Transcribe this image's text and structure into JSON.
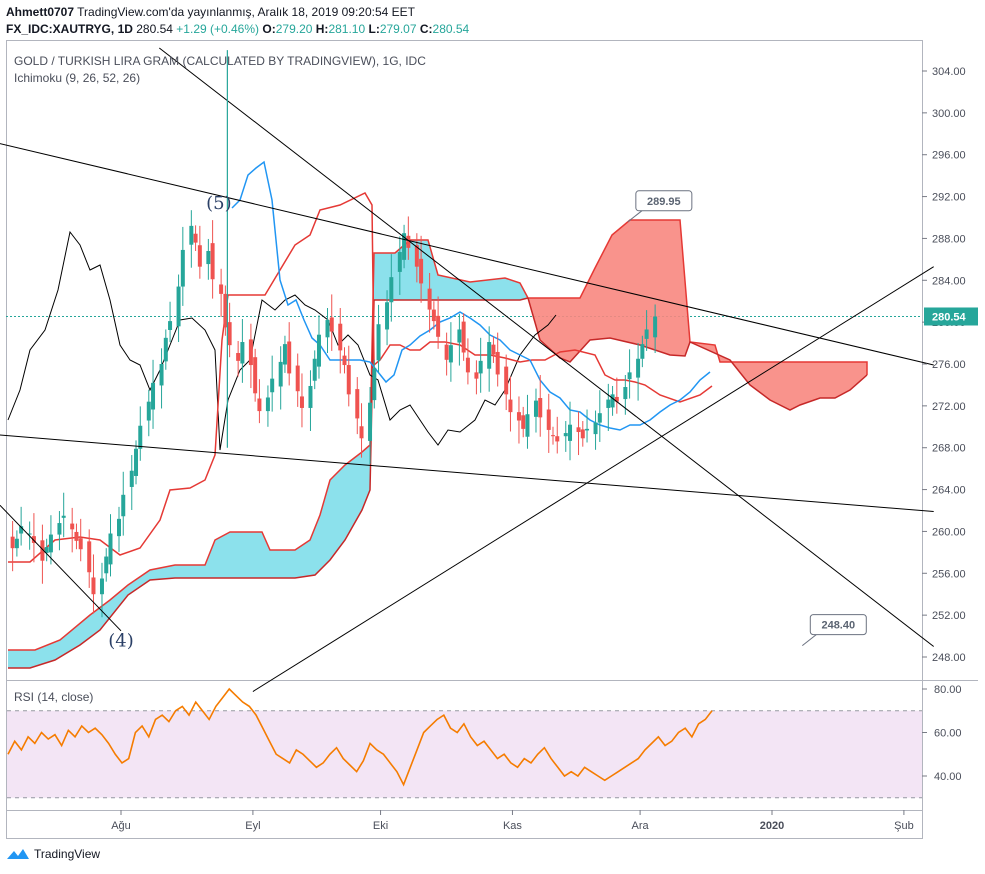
{
  "header": {
    "author": "Ahmett0707",
    "published": "TradingView.com'da yayınlanmış, Aralık 18, 2019 09:20:54 EET",
    "symbol": "FX_IDC:XAUTRYG, 1D",
    "last": "280.54",
    "change": "+1.29 (+0.46%)",
    "o_label": "O:",
    "o": "279.20",
    "h_label": "H:",
    "h": "281.10",
    "l_label": "L:",
    "l": "279.07",
    "c_label": "C:",
    "c": "280.54"
  },
  "chart_title": "GOLD / TURKISH LIRA GRAM (CALCULATED BY TRADINGVIEW), 1G, IDC",
  "indicator_label": "Ichimoku (9, 26, 52, 26)",
  "rsi_label": "RSI (14, close)",
  "footer": {
    "brand": "TradingView"
  },
  "colors": {
    "up": "#26a69a",
    "down": "#ef5350",
    "tenkan": "#2196f3",
    "kijun": "#e53935",
    "chikou": "#000000",
    "kumo_bull": "#80deea",
    "kumo_bear": "#f8877f",
    "rsi": "#f57c00",
    "rsi_band": "#f3e5f5"
  },
  "chart_data": [
    {
      "type": "candlestick",
      "title": "GOLD / TURKISH LIRA GRAM (CALCULATED BY TRADINGVIEW), 1G, IDC",
      "ylim": [
        245,
        306
      ],
      "y_ticks": [
        "304.00",
        "300.00",
        "296.00",
        "292.00",
        "288.00",
        "284.00",
        "280.00",
        "276.00",
        "272.00",
        "268.00",
        "264.00",
        "260.00",
        "256.00",
        "252.00",
        "248.00"
      ],
      "x_ticks": [
        "Ağu",
        "Eyl",
        "Eki",
        "Kas",
        "Ara",
        "2020",
        "Şub"
      ],
      "last_price": 280.54,
      "annotations": [
        {
          "text": "(5)",
          "date": "2019-08-24",
          "price": 290.8
        },
        {
          "text": "(4)",
          "date": "2019-08-01",
          "price": 249.0
        },
        {
          "text": "289.95",
          "date": "2019-11-30",
          "price": 291.5
        },
        {
          "text": "248.40",
          "date": "2020-01-10",
          "price": 251.0
        }
      ],
      "ohlc_start": "2019-07-01",
      "ohlc_close": [
        257.5,
        258.2,
        259.1,
        260.0,
        258.4,
        259.3,
        260.5,
        259.8,
        258.9,
        257.2,
        258.5,
        259.7,
        260.8,
        261.5,
        260.2,
        259.1,
        258.3,
        256.1,
        254.0,
        255.5,
        257.6,
        259.8,
        261.2,
        263.5,
        265.8,
        267.9,
        270.1,
        272.4,
        274.2,
        276.0,
        278.5,
        280.1,
        283.4,
        286.9,
        289.2,
        287.6,
        285.3,
        286.8,
        284.1,
        282.7,
        279.5,
        277.8,
        276.3,
        278.1,
        275.9,
        273.2,
        271.5,
        272.8,
        274.6,
        276.2,
        277.9,
        275.1,
        273.4,
        271.8,
        273.9,
        276.5,
        278.8,
        280.2,
        279.1,
        277.3,
        275.9,
        273.1,
        270.8,
        268.9,
        272.3,
        275.6,
        279.8,
        281.9,
        284.3,
        286.7,
        288.5,
        287.1,
        285.3,
        283.7,
        281.2,
        280.1,
        278.6,
        276.4,
        277.8,
        279.3,
        277.1,
        275.2,
        274.6,
        276.3,
        278.1,
        276.9,
        275.0,
        273.1,
        271.4,
        270.6,
        269.8,
        271.2,
        272.5,
        270.9,
        269.7,
        269.1,
        268.6,
        269.4,
        270.2,
        269.5,
        268.9,
        269.8,
        270.4,
        271.3,
        272.6,
        273.1,
        272.4,
        273.8,
        275.2,
        276.5,
        277.9,
        279.3,
        280.54
      ],
      "tenkan_points": [
        [
          232,
          208
        ],
        [
          240,
          200
        ],
        [
          248,
          175
        ],
        [
          256,
          168
        ],
        [
          264,
          162
        ],
        [
          272,
          200
        ],
        [
          280,
          280
        ],
        [
          288,
          305
        ],
        [
          296,
          300
        ],
        [
          304,
          320
        ],
        [
          312,
          338
        ],
        [
          320,
          345
        ],
        [
          330,
          360
        ],
        [
          345,
          360
        ],
        [
          360,
          360
        ],
        [
          370,
          362
        ],
        [
          378,
          372
        ],
        [
          386,
          382
        ],
        [
          394,
          375
        ],
        [
          402,
          350
        ],
        [
          410,
          345
        ],
        [
          420,
          336
        ],
        [
          430,
          330
        ],
        [
          440,
          322
        ],
        [
          450,
          318
        ],
        [
          460,
          312
        ],
        [
          470,
          318
        ],
        [
          480,
          325
        ],
        [
          490,
          335
        ],
        [
          500,
          340
        ],
        [
          510,
          350
        ],
        [
          520,
          355
        ],
        [
          530,
          360
        ],
        [
          540,
          380
        ],
        [
          550,
          392
        ],
        [
          560,
          398
        ],
        [
          570,
          410
        ],
        [
          580,
          412
        ],
        [
          590,
          420
        ],
        [
          600,
          425
        ],
        [
          610,
          428
        ],
        [
          620,
          430
        ],
        [
          630,
          425
        ],
        [
          640,
          425
        ],
        [
          650,
          420
        ],
        [
          660,
          412
        ],
        [
          670,
          405
        ],
        [
          680,
          400
        ],
        [
          690,
          392
        ],
        [
          700,
          380
        ],
        [
          710,
          372
        ]
      ],
      "kijun_points": [
        [
          8,
          562
        ],
        [
          30,
          562
        ],
        [
          55,
          540
        ],
        [
          80,
          537
        ],
        [
          100,
          540
        ],
        [
          120,
          555
        ],
        [
          140,
          548
        ],
        [
          160,
          520
        ],
        [
          170,
          490
        ],
        [
          190,
          488
        ],
        [
          205,
          480
        ],
        [
          215,
          455
        ],
        [
          222,
          340
        ],
        [
          228,
          295
        ],
        [
          265,
          295
        ],
        [
          280,
          270
        ],
        [
          295,
          245
        ],
        [
          310,
          235
        ],
        [
          320,
          210
        ],
        [
          340,
          205
        ],
        [
          365,
          193
        ],
        [
          372,
          205
        ],
        [
          374,
          365
        ],
        [
          380,
          360
        ],
        [
          390,
          345
        ],
        [
          400,
          345
        ],
        [
          410,
          350
        ],
        [
          420,
          350
        ],
        [
          430,
          342
        ],
        [
          445,
          342
        ],
        [
          460,
          345
        ],
        [
          475,
          355
        ],
        [
          490,
          355
        ],
        [
          505,
          358
        ],
        [
          520,
          362
        ],
        [
          532,
          360
        ],
        [
          545,
          360
        ],
        [
          560,
          352
        ],
        [
          575,
          350
        ],
        [
          595,
          355
        ],
        [
          605,
          375
        ],
        [
          615,
          380
        ],
        [
          625,
          380
        ],
        [
          635,
          382
        ],
        [
          645,
          385
        ],
        [
          660,
          395
        ],
        [
          680,
          402
        ],
        [
          700,
          395
        ],
        [
          712,
          386
        ]
      ],
      "chikou_points": [
        [
          8,
          420
        ],
        [
          20,
          390
        ],
        [
          30,
          350
        ],
        [
          45,
          330
        ],
        [
          58,
          290
        ],
        [
          70,
          232
        ],
        [
          80,
          245
        ],
        [
          90,
          270
        ],
        [
          100,
          265
        ],
        [
          110,
          300
        ],
        [
          120,
          345
        ],
        [
          130,
          360
        ],
        [
          140,
          365
        ],
        [
          150,
          390
        ],
        [
          160,
          370
        ],
        [
          170,
          345
        ],
        [
          180,
          320
        ],
        [
          192,
          318
        ],
        [
          205,
          330
        ],
        [
          215,
          350
        ],
        [
          220,
          450
        ],
        [
          228,
          400
        ],
        [
          240,
          370
        ],
        [
          250,
          360
        ],
        [
          262,
          300
        ],
        [
          275,
          310
        ],
        [
          285,
          300
        ],
        [
          295,
          295
        ],
        [
          305,
          305
        ],
        [
          315,
          310
        ],
        [
          328,
          320
        ],
        [
          338,
          345
        ],
        [
          348,
          335
        ],
        [
          358,
          345
        ],
        [
          370,
          375
        ],
        [
          378,
          380
        ],
        [
          390,
          420
        ],
        [
          400,
          410
        ],
        [
          410,
          405
        ],
        [
          420,
          420
        ],
        [
          428,
          432
        ],
        [
          438,
          445
        ],
        [
          448,
          430
        ],
        [
          460,
          432
        ],
        [
          475,
          420
        ],
        [
          485,
          400
        ],
        [
          495,
          405
        ],
        [
          505,
          390
        ],
        [
          520,
          355
        ],
        [
          535,
          335
        ],
        [
          548,
          325
        ],
        [
          556,
          315
        ]
      ],
      "kumo": [
        {
          "fill": "#80deea",
          "top": [
            [
              8,
              650
            ],
            [
              35,
              650
            ],
            [
              60,
              640
            ],
            [
              90,
              615
            ],
            [
              110,
              600
            ],
            [
              128,
              585
            ],
            [
              150,
              570
            ],
            [
              175,
              565
            ],
            [
              205,
              565
            ],
            [
              215,
              540
            ],
            [
              230,
              532
            ],
            [
              262,
              532
            ],
            [
              270,
              550
            ],
            [
              295,
              550
            ],
            [
              310,
              540
            ],
            [
              320,
              515
            ],
            [
              330,
              480
            ],
            [
              345,
              465
            ],
            [
              362,
              452
            ],
            [
              370,
              445
            ],
            [
              374,
              253
            ],
            [
              395,
              253
            ],
            [
              410,
              240
            ],
            [
              428,
              240
            ],
            [
              438,
              275
            ],
            [
              470,
              282
            ],
            [
              505,
              278
            ],
            [
              520,
              283
            ],
            [
              528,
              298
            ]
          ],
          "bottom": [
            [
              8,
              668
            ],
            [
              30,
              668
            ],
            [
              55,
              660
            ],
            [
              80,
              645
            ],
            [
              100,
              630
            ],
            [
              128,
              595
            ],
            [
              150,
              580
            ],
            [
              175,
              578
            ],
            [
              205,
              578
            ],
            [
              230,
              578
            ],
            [
              262,
              578
            ],
            [
              295,
              578
            ],
            [
              315,
              575
            ],
            [
              330,
              560
            ],
            [
              345,
              540
            ],
            [
              362,
              510
            ],
            [
              370,
              490
            ],
            [
              374,
              300
            ],
            [
              400,
              300
            ],
            [
              430,
              300
            ],
            [
              470,
              300
            ],
            [
              505,
              300
            ],
            [
              520,
              300
            ],
            [
              528,
              298
            ]
          ]
        },
        {
          "fill": "#f8877f",
          "top": [
            [
              528,
              298
            ],
            [
              580,
              298
            ],
            [
              595,
              268
            ],
            [
              612,
              235
            ],
            [
              630,
              220
            ],
            [
              680,
              220
            ],
            [
              690,
              342
            ],
            [
              715,
              345
            ],
            [
              720,
              362
            ],
            [
              867,
              362
            ],
            [
              867,
              375
            ]
          ],
          "bottom": [
            [
              528,
              298
            ],
            [
              540,
              340
            ],
            [
              560,
              358
            ],
            [
              570,
              362
            ],
            [
              590,
              340
            ],
            [
              610,
              338
            ],
            [
              640,
              345
            ],
            [
              670,
              355
            ],
            [
              685,
              356
            ],
            [
              690,
              342
            ],
            [
              730,
              360
            ],
            [
              750,
              385
            ],
            [
              770,
              400
            ],
            [
              790,
              410
            ],
            [
              800,
              405
            ],
            [
              820,
              398
            ],
            [
              835,
              398
            ],
            [
              850,
              390
            ],
            [
              867,
              375
            ]
          ]
        }
      ],
      "trendlines": [
        {
          "from": [
            "2019-06-28",
            297.6
          ],
          "to": [
            "2020-02-08",
            275.9
          ]
        },
        {
          "from": [
            "2019-06-28",
            269.4
          ],
          "to": [
            "2020-02-08",
            261.9
          ]
        },
        {
          "from": [
            "2019-08-10",
            306.2
          ],
          "to": [
            "2020-02-08",
            249.0
          ]
        },
        {
          "from": [
            "2019-09-01",
            244.7
          ],
          "to": [
            "2020-02-08",
            285.3
          ]
        },
        {
          "from": [
            "2019-06-30",
            264.0
          ],
          "to": [
            "2019-08-01",
            250.5
          ]
        },
        {
          "from": [
            "2019-08-26",
            306.0
          ],
          "to": [
            "2019-08-26",
            268.0
          ]
        }
      ]
    },
    {
      "type": "line",
      "title": "RSI (14, close)",
      "ylim": [
        25,
        82
      ],
      "y_ticks": [
        "80.00",
        "60.00",
        "40.00"
      ],
      "band": [
        30,
        70
      ],
      "values": [
        50,
        56,
        52,
        58,
        55,
        60,
        57,
        59,
        54,
        61,
        58,
        63,
        60,
        62,
        59,
        55,
        50,
        46,
        48,
        60,
        63,
        58,
        66,
        68,
        65,
        70,
        72,
        68,
        74,
        70,
        66,
        72,
        76,
        80,
        77,
        74,
        72,
        68,
        62,
        56,
        50,
        48,
        46,
        52,
        50,
        47,
        44,
        46,
        50,
        53,
        48,
        45,
        42,
        47,
        55,
        52,
        50,
        46,
        42,
        36,
        44,
        52,
        60,
        63,
        66,
        68,
        62,
        60,
        64,
        58,
        54,
        56,
        52,
        48,
        50,
        46,
        44,
        48,
        46,
        50,
        53,
        48,
        44,
        40,
        42,
        40,
        44,
        42,
        40,
        38,
        40,
        42,
        44,
        46,
        48,
        52,
        55,
        58,
        54,
        56,
        60,
        62,
        58,
        64,
        66,
        70
      ]
    }
  ]
}
